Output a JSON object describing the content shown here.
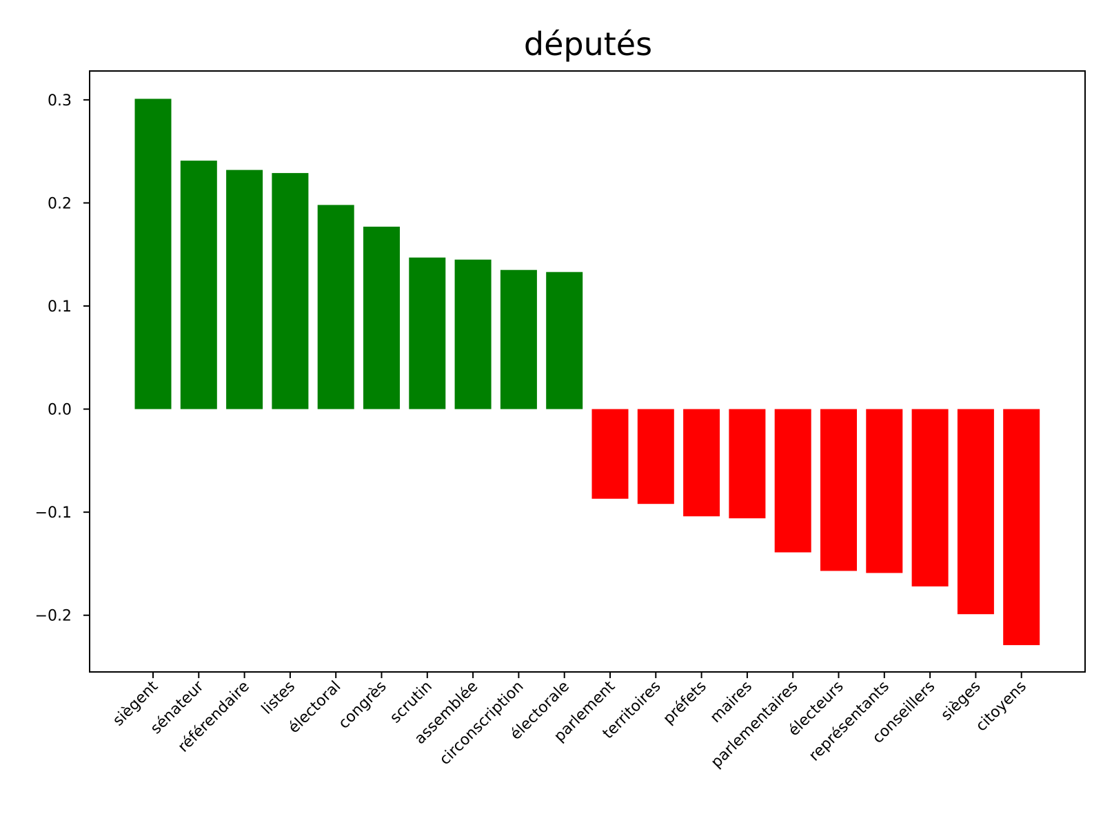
{
  "chart_data": {
    "type": "bar",
    "title": "députés",
    "xlabel": "",
    "ylabel": "",
    "ylim": [
      -0.255,
      0.328
    ],
    "yticks": [
      -0.2,
      -0.1,
      0.0,
      0.1,
      0.2,
      0.3
    ],
    "ytick_labels": [
      "−0.2",
      "−0.1",
      "0.0",
      "0.1",
      "0.2",
      "0.3"
    ],
    "grid": false,
    "categories": [
      "siègent",
      "sénateur",
      "référendaire",
      "listes",
      "électoral",
      "congrès",
      "scrutin",
      "assemblée",
      "circonscription",
      "électorale",
      "parlement",
      "territoires",
      "préfets",
      "maires",
      "parlementaires",
      "électeurs",
      "représentants",
      "conseillers",
      "sièges",
      "citoyens"
    ],
    "values": [
      0.301,
      0.241,
      0.232,
      0.229,
      0.198,
      0.177,
      0.147,
      0.145,
      0.135,
      0.133,
      -0.087,
      -0.092,
      -0.104,
      -0.106,
      -0.139,
      -0.157,
      -0.159,
      -0.172,
      -0.199,
      -0.229
    ],
    "colors": {
      "positive": "#008000",
      "negative": "#ff0000",
      "axes": "#000000"
    }
  }
}
